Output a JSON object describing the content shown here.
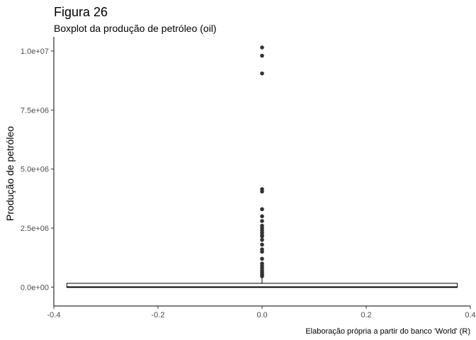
{
  "chart_data": {
    "type": "boxplot",
    "title": "Figura 26",
    "subtitle": "Boxplot da produção de petróleo (oil)",
    "xlabel": "",
    "ylabel": "Produção de petróleo",
    "caption": "Elaboração própria a partir do banco 'World' (R)",
    "xlim": [
      -0.4,
      0.4
    ],
    "ylim": [
      -800000,
      10600000
    ],
    "x_ticks": [
      -0.4,
      -0.2,
      0.0,
      0.2,
      0.4
    ],
    "x_tick_labels": [
      "-0.4",
      "-0.2",
      "0.0",
      "0.2",
      "0.4"
    ],
    "y_ticks": [
      0,
      2500000,
      5000000,
      7500000,
      10000000
    ],
    "y_tick_labels": [
      "0.0e+00",
      "2.5e+06",
      "5.0e+06",
      "7.5e+06",
      "1.0e+07"
    ],
    "grid": false,
    "box": {
      "x_center": 0.0,
      "x_min": -0.375,
      "x_max": 0.375,
      "q1": 0,
      "median": 0,
      "q3": 160000,
      "whisker_low": 0,
      "whisker_high": 400000
    },
    "outliers": [
      10150000,
      9800000,
      9050000,
      4150000,
      4050000,
      3300000,
      3000000,
      2800000,
      2600000,
      2500000,
      2400000,
      2300000,
      2200000,
      2150000,
      2000000,
      1800000,
      1600000,
      1500000,
      1200000,
      1000000,
      900000,
      800000,
      700000,
      620000,
      550000,
      500000,
      460000
    ],
    "colors": {
      "box_outline": "#000000",
      "outlier_fill": "#333333",
      "axis": "#000000"
    }
  }
}
